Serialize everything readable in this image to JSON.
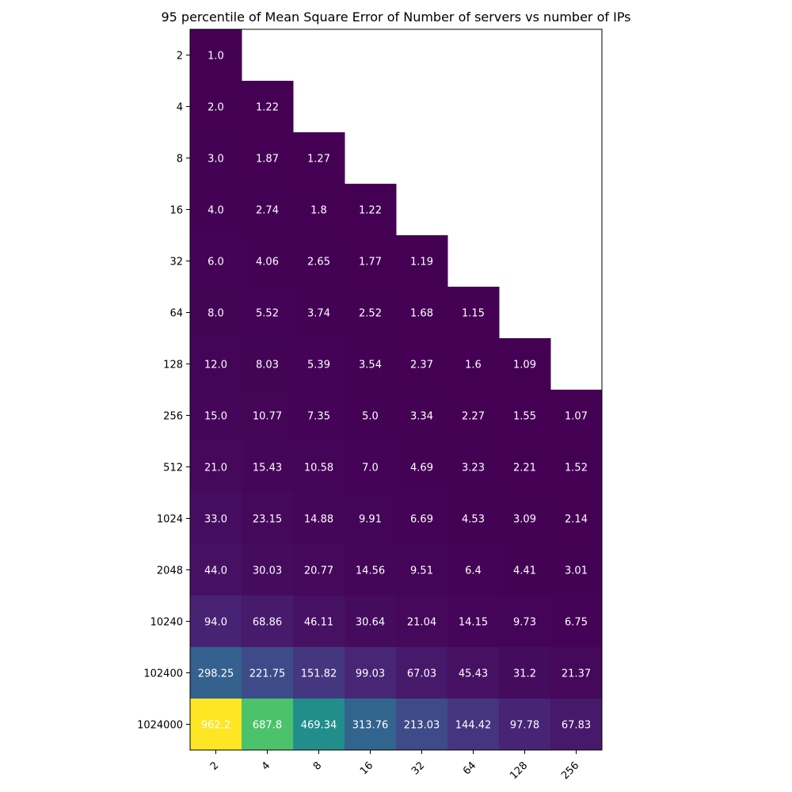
{
  "chart_data": {
    "type": "heatmap",
    "title": "95 percentile of Mean Square Error of Number of servers vs number of IPs",
    "xlabel": "",
    "ylabel": "",
    "x_categories": [
      "2",
      "4",
      "8",
      "16",
      "32",
      "64",
      "128",
      "256"
    ],
    "y_categories": [
      "2",
      "4",
      "8",
      "16",
      "32",
      "64",
      "128",
      "256",
      "512",
      "1024",
      "2048",
      "10240",
      "102400",
      "1024000"
    ],
    "colormap": "viridis",
    "value_range": [
      1.0,
      962.2
    ],
    "cells": [
      [
        1.0,
        null,
        null,
        null,
        null,
        null,
        null,
        null
      ],
      [
        2.0,
        1.22,
        null,
        null,
        null,
        null,
        null,
        null
      ],
      [
        3.0,
        1.87,
        1.27,
        null,
        null,
        null,
        null,
        null
      ],
      [
        4.0,
        2.74,
        1.8,
        1.22,
        null,
        null,
        null,
        null
      ],
      [
        6.0,
        4.06,
        2.65,
        1.77,
        1.19,
        null,
        null,
        null
      ],
      [
        8.0,
        5.52,
        3.74,
        2.52,
        1.68,
        1.15,
        null,
        null
      ],
      [
        12.0,
        8.03,
        5.39,
        3.54,
        2.37,
        1.6,
        1.09,
        null
      ],
      [
        15.0,
        10.77,
        7.35,
        5.0,
        3.34,
        2.27,
        1.55,
        1.07
      ],
      [
        21.0,
        15.43,
        10.58,
        7.0,
        4.69,
        3.23,
        2.21,
        1.52
      ],
      [
        33.0,
        23.15,
        14.88,
        9.91,
        6.69,
        4.53,
        3.09,
        2.14
      ],
      [
        44.0,
        30.03,
        20.77,
        14.56,
        9.51,
        6.4,
        4.41,
        3.01
      ],
      [
        94.0,
        68.86,
        46.11,
        30.64,
        21.04,
        14.15,
        9.73,
        6.75
      ],
      [
        298.25,
        221.75,
        151.82,
        99.03,
        67.03,
        45.43,
        31.2,
        21.37
      ],
      [
        962.2,
        687.8,
        469.34,
        313.76,
        213.03,
        144.42,
        97.78,
        67.83
      ]
    ],
    "cell_labels": [
      [
        "1.0",
        null,
        null,
        null,
        null,
        null,
        null,
        null
      ],
      [
        "2.0",
        "1.22",
        null,
        null,
        null,
        null,
        null,
        null
      ],
      [
        "3.0",
        "1.87",
        "1.27",
        null,
        null,
        null,
        null,
        null
      ],
      [
        "4.0",
        "2.74",
        "1.8",
        "1.22",
        null,
        null,
        null,
        null
      ],
      [
        "6.0",
        "4.06",
        "2.65",
        "1.77",
        "1.19",
        null,
        null,
        null
      ],
      [
        "8.0",
        "5.52",
        "3.74",
        "2.52",
        "1.68",
        "1.15",
        null,
        null
      ],
      [
        "12.0",
        "8.03",
        "5.39",
        "3.54",
        "2.37",
        "1.6",
        "1.09",
        null
      ],
      [
        "15.0",
        "10.77",
        "7.35",
        "5.0",
        "3.34",
        "2.27",
        "1.55",
        "1.07"
      ],
      [
        "21.0",
        "15.43",
        "10.58",
        "7.0",
        "4.69",
        "3.23",
        "2.21",
        "1.52"
      ],
      [
        "33.0",
        "23.15",
        "14.88",
        "9.91",
        "6.69",
        "4.53",
        "3.09",
        "2.14"
      ],
      [
        "44.0",
        "30.03",
        "20.77",
        "14.56",
        "9.51",
        "6.4",
        "4.41",
        "3.01"
      ],
      [
        "94.0",
        "68.86",
        "46.11",
        "30.64",
        "21.04",
        "14.15",
        "9.73",
        "6.75"
      ],
      [
        "298.25",
        "221.75",
        "151.82",
        "99.03",
        "67.03",
        "45.43",
        "31.2",
        "21.37"
      ],
      [
        "962.2",
        "687.8",
        "469.34",
        "313.76",
        "213.03",
        "144.42",
        "97.78",
        "67.83"
      ]
    ],
    "grid": false,
    "legend": "none"
  }
}
